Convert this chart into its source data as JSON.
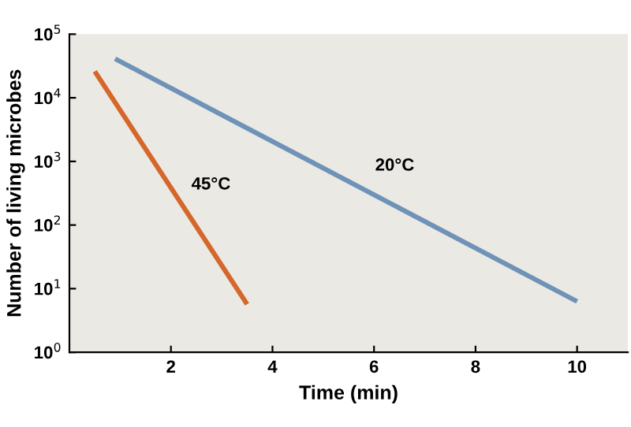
{
  "chart_data": {
    "type": "line",
    "xlabel": "Time (min)",
    "ylabel": "Number of living microbes",
    "log": "y",
    "xlim": [
      0,
      11
    ],
    "xticks": [
      2,
      4,
      6,
      8,
      10
    ],
    "ylim": [
      1,
      100000
    ],
    "yticks": [
      {
        "value": 1,
        "label": "10$^{0}$"
      },
      {
        "value": 10,
        "label": "10$^{1}$"
      },
      {
        "value": 100,
        "label": "10$^{2}$"
      },
      {
        "value": 1000,
        "label": "10$^{3}$"
      },
      {
        "value": 10000,
        "label": "10$^{4}$"
      },
      {
        "value": 100000,
        "label": "10$^{5}$"
      }
    ],
    "grid": false,
    "legend": false,
    "marker": "none",
    "line_style": "solid",
    "series": [
      {
        "name": "45°C",
        "color": "#d5672a",
        "x": [
          0.5,
          3.5
        ],
        "values": [
          26000,
          5.7
        ]
      },
      {
        "name": "20°C",
        "color": "#6f93b8",
        "x": [
          0.9,
          10
        ],
        "values": [
          41000,
          6.3
        ]
      }
    ]
  }
}
